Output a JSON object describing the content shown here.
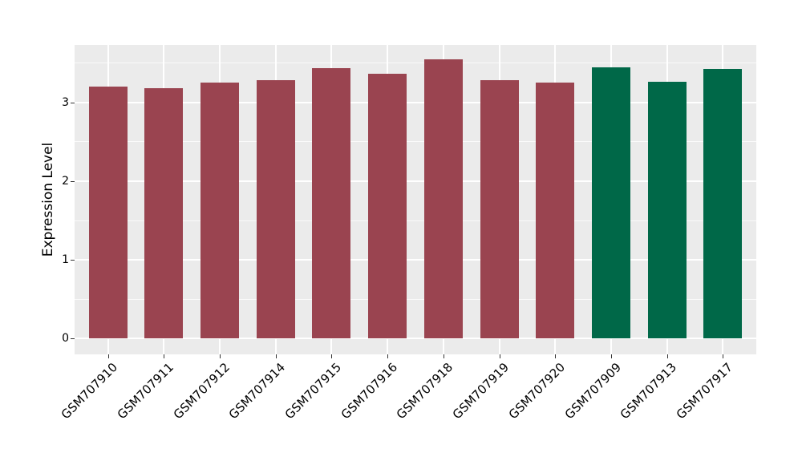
{
  "chart_data": {
    "type": "bar",
    "title": "",
    "xlabel": "",
    "ylabel": "Expression Level",
    "categories": [
      "GSM707910",
      "GSM707911",
      "GSM707912",
      "GSM707914",
      "GSM707915",
      "GSM707916",
      "GSM707918",
      "GSM707919",
      "GSM707920",
      "GSM707909",
      "GSM707913",
      "GSM707917"
    ],
    "values": [
      3.2,
      3.18,
      3.25,
      3.28,
      3.43,
      3.36,
      3.55,
      3.28,
      3.25,
      3.44,
      3.26,
      3.42
    ],
    "bar_groups": [
      "red",
      "red",
      "red",
      "red",
      "red",
      "red",
      "red",
      "red",
      "red",
      "green",
      "green",
      "green"
    ],
    "group_colors": {
      "red": "#9A4450",
      "green": "#006848"
    },
    "yticks": [
      0,
      1,
      2,
      3
    ],
    "yticks_minor": [
      0.5,
      1.5,
      2.5,
      3.5
    ],
    "ylim": [
      -0.2,
      3.73
    ],
    "grid": true,
    "legend": false,
    "panel_bg": "#EBEBEB",
    "grid_color": "#FFFFFF",
    "tick_color": "#333333",
    "text_color": "#000000"
  }
}
